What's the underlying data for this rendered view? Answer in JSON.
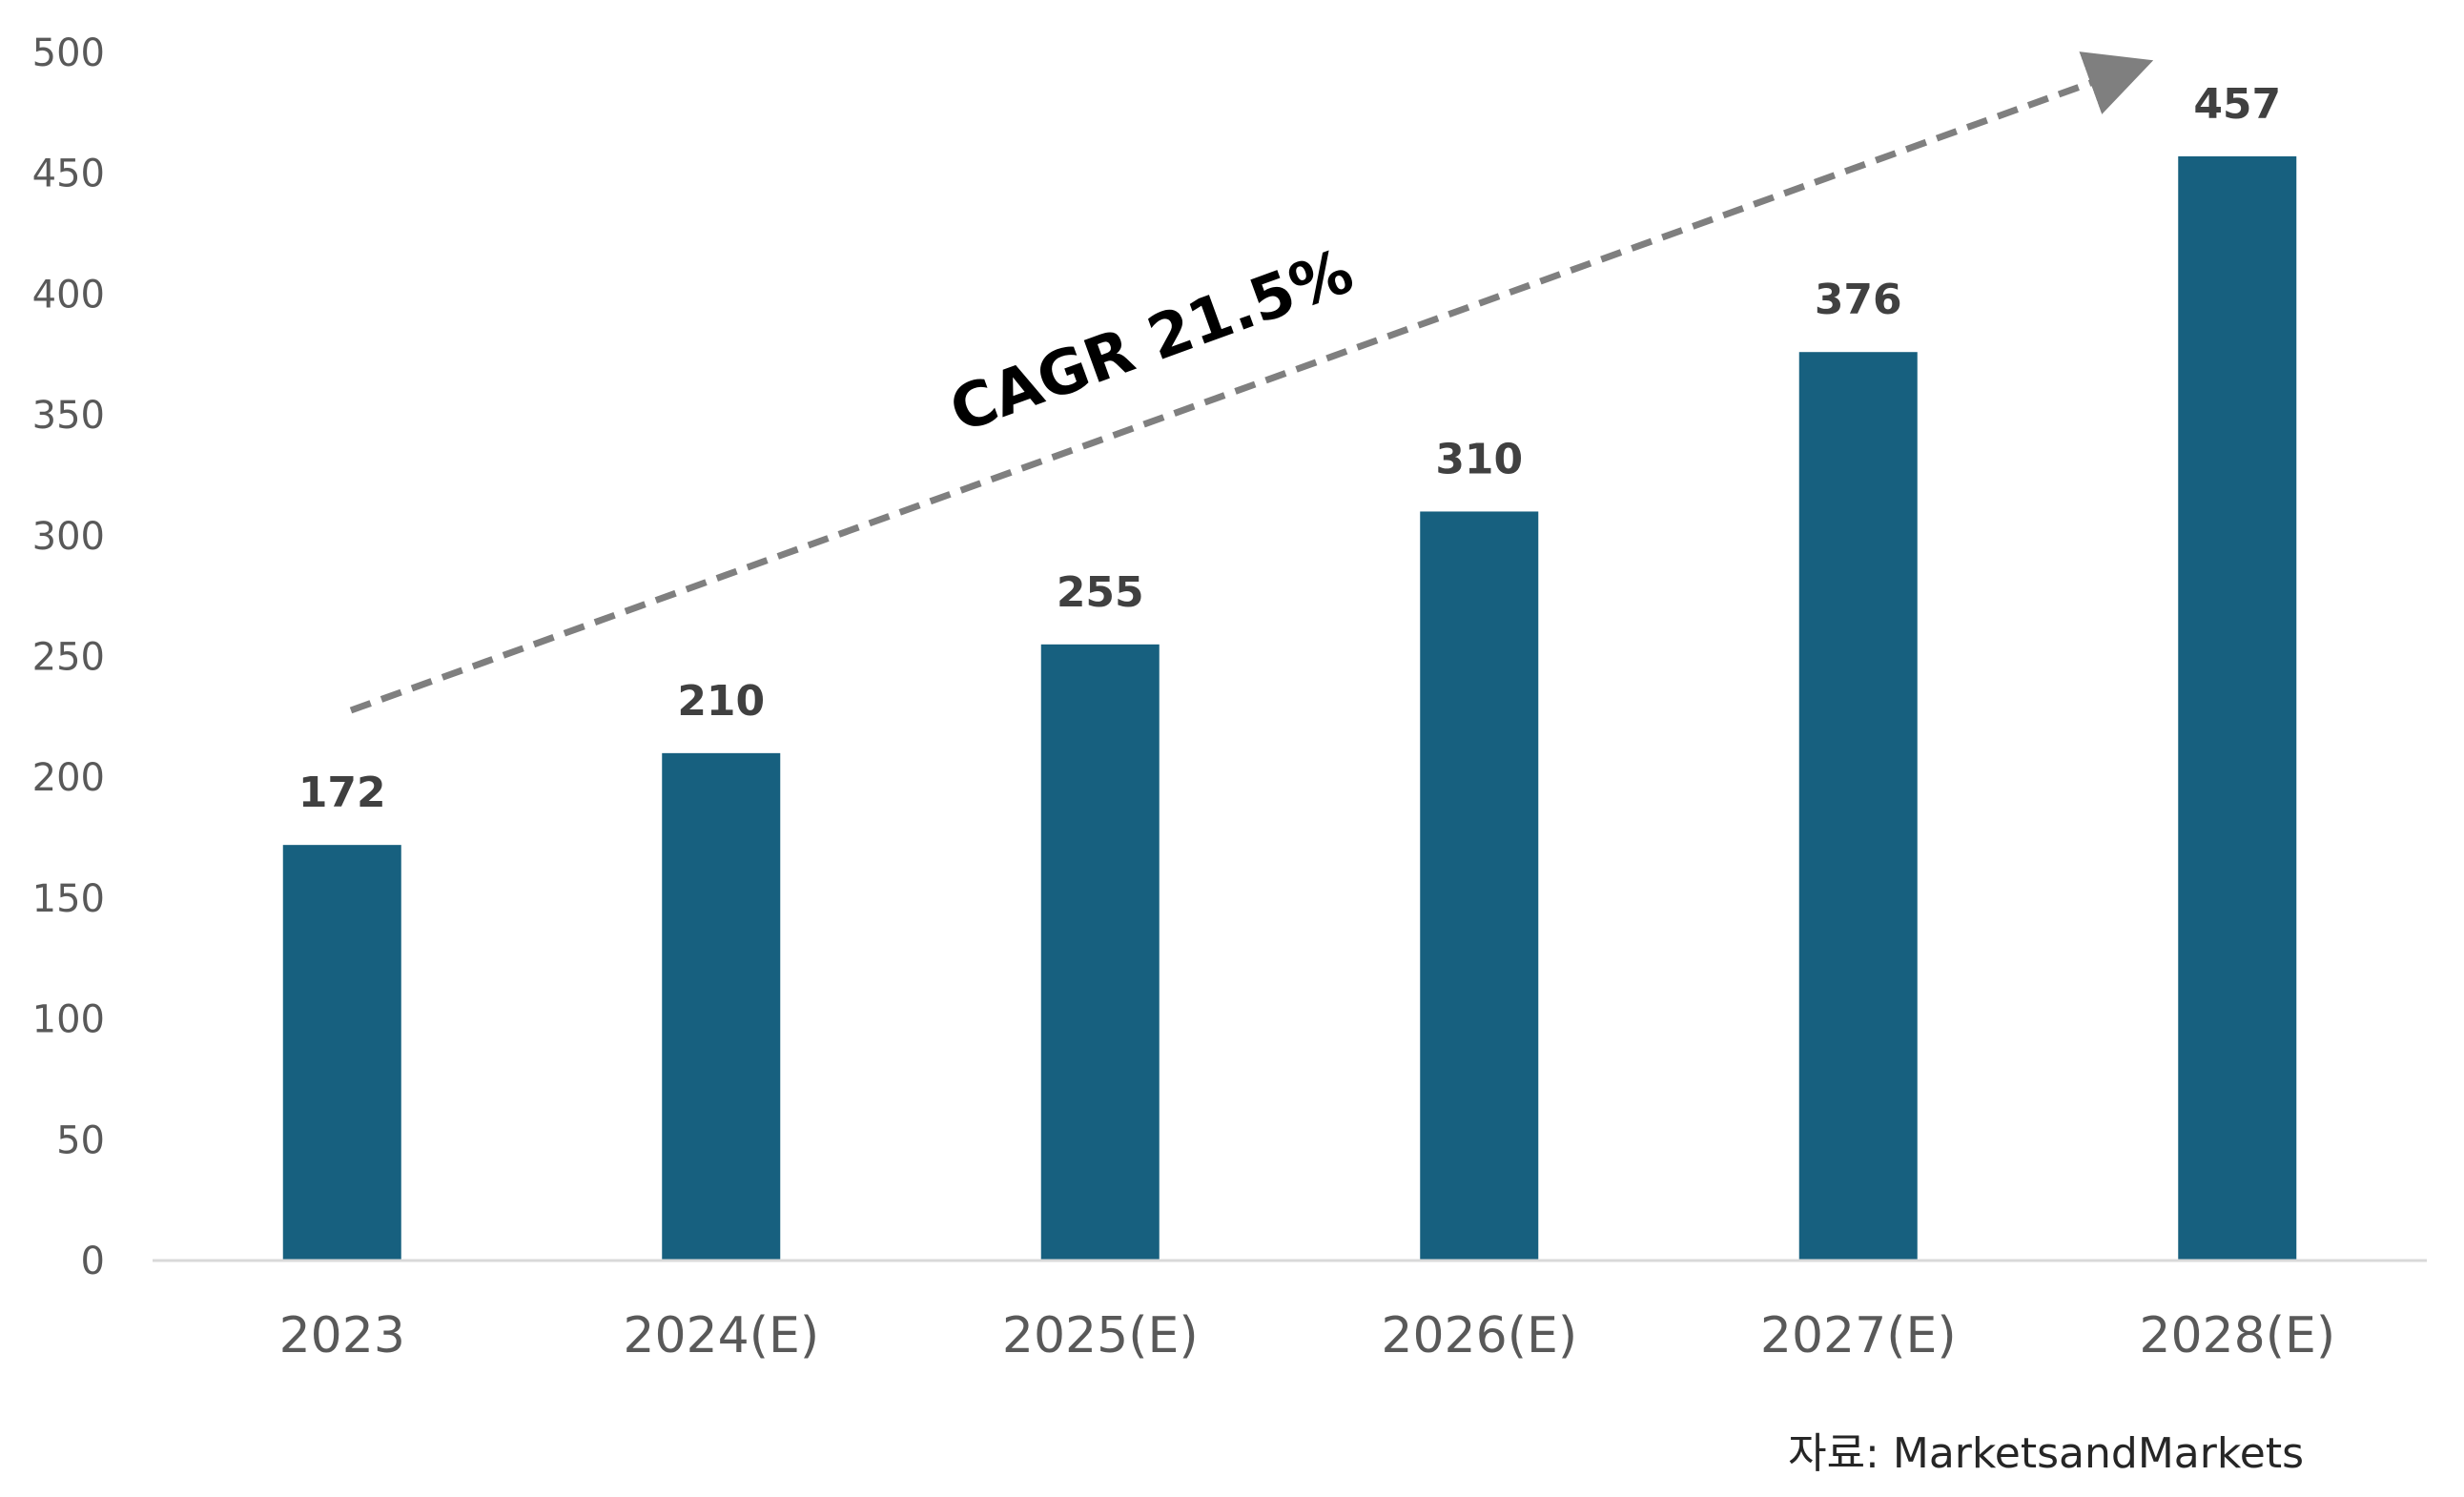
{
  "chart_data": {
    "type": "bar",
    "categories": [
      "2023",
      "2024(E)",
      "2025(E)",
      "2026(E)",
      "2027(E)",
      "2028(E)"
    ],
    "values": [
      172,
      210,
      255,
      310,
      376,
      457
    ],
    "data_labels": [
      "172",
      "210",
      "255",
      "310",
      "376",
      "457"
    ],
    "ylim": [
      0,
      500
    ],
    "yticks": [
      0,
      50,
      100,
      150,
      200,
      250,
      300,
      350,
      400,
      450,
      500
    ],
    "ytick_labels": [
      "0",
      "50",
      "100",
      "150",
      "200",
      "250",
      "300",
      "350",
      "400",
      "450",
      "500"
    ],
    "bar_color": "#17607F",
    "grid": false,
    "legend": "none",
    "annotation": {
      "text": "CAGR 21.5%",
      "style": "dashed arrow from first bar toward last bar",
      "color": "#7F7F7F"
    }
  },
  "source": {
    "text": "자료: MarketsandMarkets"
  }
}
